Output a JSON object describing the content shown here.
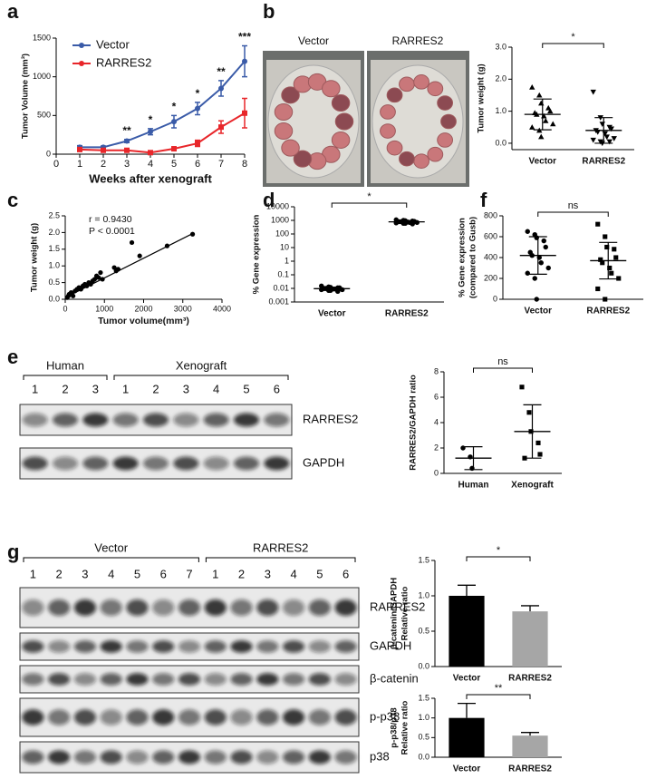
{
  "panel_labels": [
    "a",
    "b",
    "c",
    "d",
    "e",
    "f",
    "g"
  ],
  "photo_b": {
    "labels": [
      "Vector",
      "RARRES2"
    ]
  },
  "blot_e": {
    "groups": [
      {
        "label": "Human",
        "lanes": 3
      },
      {
        "label": "Xenograft",
        "lanes": 6
      }
    ],
    "lanes": [
      "1",
      "2",
      "3",
      "1",
      "2",
      "3",
      "4",
      "5",
      "6"
    ],
    "bands": [
      "RARRES2",
      "GAPDH"
    ]
  },
  "blot_g": {
    "groups": [
      {
        "label": "Vector",
        "lanes": 7
      },
      {
        "label": "RARRES2",
        "lanes": 6
      }
    ],
    "lanes": [
      "1",
      "2",
      "3",
      "4",
      "5",
      "6",
      "7",
      "1",
      "2",
      "3",
      "4",
      "5",
      "6"
    ],
    "bands": [
      "RARRES2",
      "GAPDH",
      "β-catenin",
      "p-p38",
      "p38"
    ]
  },
  "chart_data": [
    {
      "type": "line",
      "ylabel": "Tumor Volume (mm³)",
      "xlabel": "Weeks after xenograft",
      "x": [
        1,
        2,
        3,
        4,
        5,
        6,
        7,
        8
      ],
      "xlim": [
        0,
        8
      ],
      "xticks": [
        0,
        1,
        2,
        3,
        4,
        5,
        6,
        7,
        8
      ],
      "ylim": [
        0,
        1500
      ],
      "yticks": [
        0,
        500,
        1000,
        1500
      ],
      "legend": "upper left",
      "series": [
        {
          "name": "Vector",
          "color": "#3a5ba8",
          "values": [
            90,
            90,
            170,
            290,
            420,
            590,
            850,
            1200
          ],
          "errors": [
            20,
            15,
            20,
            40,
            80,
            80,
            100,
            200
          ]
        },
        {
          "name": "RARRES2",
          "color": "#e8262a",
          "values": [
            60,
            50,
            50,
            20,
            70,
            140,
            350,
            530
          ],
          "errors": [
            15,
            10,
            10,
            10,
            20,
            40,
            80,
            190
          ]
        }
      ],
      "annotations": [
        {
          "x": 3,
          "text": "**"
        },
        {
          "x": 4,
          "text": "*"
        },
        {
          "x": 5,
          "text": "*"
        },
        {
          "x": 6,
          "text": "*"
        },
        {
          "x": 7,
          "text": "**"
        },
        {
          "x": 8,
          "text": "***"
        }
      ]
    },
    {
      "type": "dotplot",
      "ylabel": [
        "Tumor weight (g)"
      ],
      "categories": [
        "Vector",
        "RARRES2"
      ],
      "ylim": [
        -0.2,
        3.0
      ],
      "yticks": [
        {
          "value": 0,
          "label": "0.0"
        },
        {
          "value": 1,
          "label": "1.0"
        },
        {
          "value": 2,
          "label": "2.0"
        },
        {
          "value": 3,
          "label": "3.0"
        }
      ],
      "markers": [
        "triangle",
        "triangle-down"
      ],
      "points": [
        [
          1.75,
          1.5,
          1.25,
          1.1,
          1.0,
          0.95,
          0.9,
          0.85,
          0.7,
          0.6,
          0.5,
          0.4,
          0.2
        ],
        [
          1.6,
          0.8,
          0.6,
          0.5,
          0.45,
          0.4,
          0.35,
          0.3,
          0.2,
          0.15,
          0.1,
          0.05,
          0.0,
          0.05
        ]
      ],
      "means": [
        0.9,
        0.4
      ],
      "sds": [
        0.48,
        0.4
      ],
      "significance": "*"
    },
    {
      "type": "scatter",
      "ylabel": [
        "Tumor weight (g)"
      ],
      "xlabel": "Tumor volume(mm³)",
      "xlim": [
        0,
        4000
      ],
      "xticks": [
        0,
        1000,
        2000,
        3000,
        4000
      ],
      "ylim": [
        0,
        2.5
      ],
      "yticks": [
        {
          "value": 0,
          "label": "0.0"
        },
        {
          "value": 0.5,
          "label": "0.5"
        },
        {
          "value": 1,
          "label": "1.0"
        },
        {
          "value": 1.5,
          "label": "1.5"
        },
        {
          "value": 2,
          "label": "2.0"
        },
        {
          "value": 2.5,
          "label": "2.5"
        }
      ],
      "x": [
        50,
        80,
        100,
        150,
        200,
        250,
        300,
        350,
        400,
        450,
        500,
        550,
        600,
        650,
        700,
        750,
        800,
        850,
        900,
        950,
        1250,
        1300,
        1350,
        1700,
        1900,
        2600,
        3250
      ],
      "y": [
        0.05,
        0.1,
        0.15,
        0.2,
        0.1,
        0.25,
        0.3,
        0.35,
        0.3,
        0.4,
        0.45,
        0.4,
        0.5,
        0.45,
        0.55,
        0.6,
        0.7,
        0.65,
        0.8,
        0.6,
        0.95,
        0.85,
        0.9,
        1.7,
        1.3,
        1.6,
        1.95
      ],
      "fit": {
        "slope": 0.00059,
        "intercept": 0.05
      },
      "annotations": [
        "r = 0.9430",
        "P < 0.0001"
      ]
    },
    {
      "type": "dotplot",
      "ylabel": [
        "% Gene expression"
      ],
      "categories": [
        "Vector",
        "RARRES2"
      ],
      "log_y": true,
      "ylim": [
        0.001,
        10000
      ],
      "yticks": [
        0.001,
        0.01,
        0.1,
        1,
        10,
        100,
        1000,
        10000
      ],
      "markers": [
        "circle",
        "circle"
      ],
      "points": [
        [
          0.015,
          0.013,
          0.012,
          0.011,
          0.011,
          0.01,
          0.01,
          0.009,
          0.009,
          0.008,
          0.008,
          0.007,
          0.007,
          0.006
        ],
        [
          1100,
          1000,
          950,
          900,
          850,
          800,
          800,
          750,
          700,
          700,
          650,
          600,
          600,
          550
        ]
      ],
      "means": [
        0.0095,
        780
      ],
      "sds": [
        0.0025,
        170
      ],
      "significance": "*"
    },
    {
      "type": "dotplot",
      "ylabel": [
        "% Gene expression",
        "(compared to Gusb)"
      ],
      "categories": [
        "Vector",
        "RARRES2"
      ],
      "ylim": [
        0,
        800
      ],
      "yticks": [
        0,
        200,
        400,
        600,
        800
      ],
      "markers": [
        "circle",
        "square"
      ],
      "points": [
        [
          650,
          620,
          590,
          560,
          500,
          450,
          420,
          400,
          350,
          300,
          250,
          200,
          0
        ],
        [
          720,
          600,
          500,
          480,
          400,
          380,
          350,
          300,
          250,
          200,
          100,
          0
        ]
      ],
      "means": [
        420,
        370
      ],
      "sds": [
        180,
        175
      ],
      "significance": "ns"
    },
    {
      "type": "dotplot",
      "ylabel": [
        "RARRES2/GAPDH ratio"
      ],
      "categories": [
        "Human",
        "Xenograft"
      ],
      "ylim": [
        0,
        8
      ],
      "yticks": [
        0,
        2,
        4,
        6,
        8
      ],
      "markers": [
        "circle",
        "square"
      ],
      "points": [
        [
          2.0,
          1.3,
          0.4
        ],
        [
          6.8,
          4.8,
          3.3,
          2.4,
          1.5,
          1.2
        ]
      ],
      "means": [
        1.2,
        3.3
      ],
      "sds": [
        0.9,
        2.1
      ],
      "significance": "ns"
    },
    {
      "type": "bar",
      "ylabel": [
        "β-catenin/GAPDH",
        "Relative ratio"
      ],
      "categories": [
        "Vector",
        "RARRES2"
      ],
      "ylim": [
        0,
        1.5
      ],
      "yticks": [
        {
          "value": 0,
          "label": "0.0"
        },
        {
          "value": 0.5,
          "label": "0.5"
        },
        {
          "value": 1,
          "label": "1.0"
        },
        {
          "value": 1.5,
          "label": "1.5"
        }
      ],
      "values": [
        1.0,
        0.78
      ],
      "errors": [
        0.15,
        0.08
      ],
      "colors": [
        "#000000",
        "#a6a6a6"
      ],
      "significance": "*"
    },
    {
      "type": "bar",
      "ylabel": [
        "p-p38/p38",
        "Relative ratio"
      ],
      "categories": [
        "Vector",
        "RARRES2"
      ],
      "ylim": [
        0,
        1.5
      ],
      "yticks": [
        {
          "value": 0,
          "label": "0.0"
        },
        {
          "value": 0.5,
          "label": "0.5"
        },
        {
          "value": 1,
          "label": "1.0"
        },
        {
          "value": 1.5,
          "label": "1.5"
        }
      ],
      "values": [
        1.0,
        0.55
      ],
      "errors": [
        0.37,
        0.08
      ],
      "colors": [
        "#000000",
        "#a6a6a6"
      ],
      "significance": "**"
    }
  ]
}
